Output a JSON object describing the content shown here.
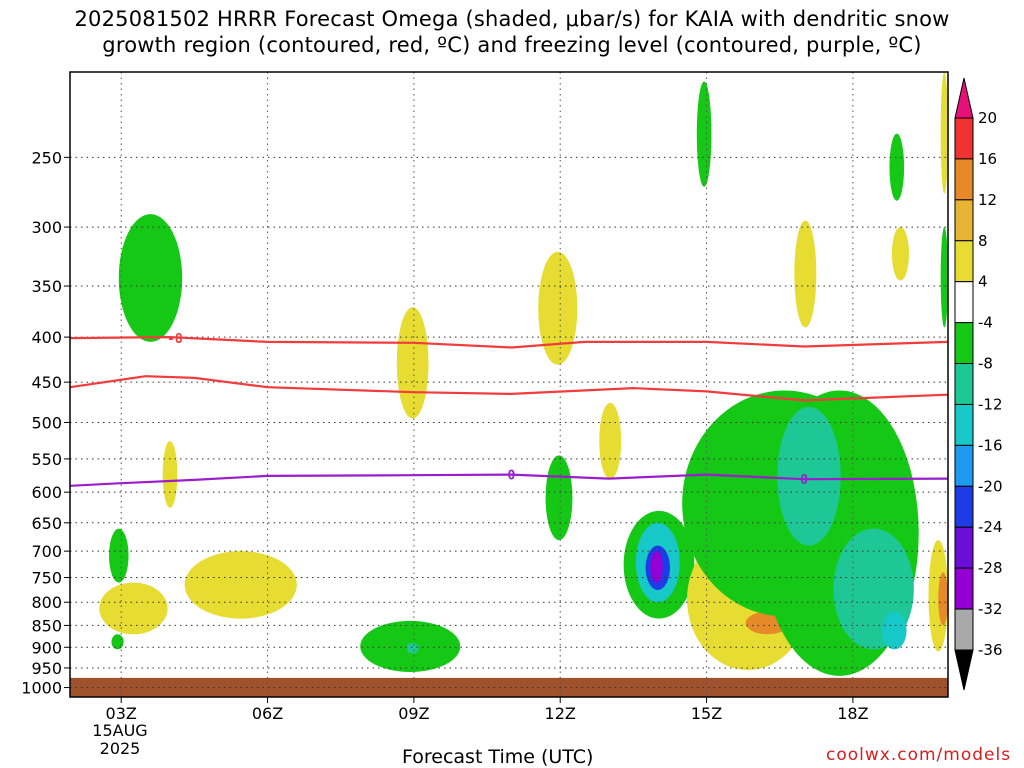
{
  "title": {
    "line1": "2025081502 HRRR Forecast Omega (shaded, μbar/s) for KAIA with dendritic snow",
    "line2": "growth region (contoured, red, ºC) and freezing level (contoured, purple, ºC)"
  },
  "x_axis": {
    "label": "Forecast Time (UTC)",
    "date_line1": "15AUG",
    "date_line2": "2025"
  },
  "credit": "coolwx.com/models",
  "chart_data": {
    "type": "heatmap",
    "title": "2025081502 HRRR Forecast Omega (shaded, μbar/s) for KAIA with dendritic snow growth region (contoured, red, ºC) and freezing level (contoured, purple, ºC)",
    "xlabel": "Forecast Time (UTC)",
    "ylabel": "",
    "x_ticks": [
      "03Z",
      "06Z",
      "09Z",
      "12Z",
      "15Z",
      "18Z"
    ],
    "x_range_hours_utc": [
      1.95,
      19.95
    ],
    "y_ticks_hpa": [
      250,
      300,
      350,
      400,
      450,
      500,
      550,
      600,
      650,
      700,
      750,
      800,
      850,
      900,
      950,
      1000
    ],
    "y_range_hpa": [
      200,
      1025
    ],
    "y_scale": "pressure (inverted)",
    "ground_below_hpa": 975,
    "ground_color": "#a0522d",
    "grid": "dotted",
    "colorbar": {
      "levels": [
        -36,
        -32,
        -28,
        -24,
        -20,
        -16,
        -12,
        -8,
        -4,
        4,
        8,
        12,
        16,
        20
      ],
      "colors": [
        "#000000",
        "#a9a9a9",
        "#9400d3",
        "#6a0fd8",
        "#1e3ce6",
        "#1e9bf0",
        "#16c8c8",
        "#1ec896",
        "#16c816",
        "#ffffff",
        "#e6dc32",
        "#e6b432",
        "#e68a28",
        "#f03232",
        "#e6107a"
      ]
    },
    "series": [
      {
        "name": "-8",
        "color": "#f03c3c",
        "points": [
          [
            1.95,
            401
          ],
          [
            4,
            400
          ],
          [
            6,
            405
          ],
          [
            9,
            406
          ],
          [
            11,
            411
          ],
          [
            12.5,
            405
          ],
          [
            15,
            405
          ],
          [
            17,
            410
          ],
          [
            19.95,
            405
          ]
        ]
      },
      {
        "name": "",
        "color": "#f03c3c",
        "points": [
          [
            1.95,
            456
          ],
          [
            3.5,
            443
          ],
          [
            4.5,
            445
          ],
          [
            6,
            456
          ],
          [
            9,
            462
          ],
          [
            11,
            464
          ],
          [
            13.5,
            457
          ],
          [
            15,
            461
          ],
          [
            17,
            472
          ],
          [
            19.95,
            465
          ]
        ]
      },
      {
        "name": "0",
        "color": "#9a1ecc",
        "points": [
          [
            1.95,
            590
          ],
          [
            3,
            586
          ],
          [
            4.5,
            581
          ],
          [
            6,
            575
          ],
          [
            9,
            574
          ],
          [
            11,
            573
          ],
          [
            13,
            579
          ],
          [
            15,
            573
          ],
          [
            17,
            580
          ],
          [
            19.95,
            579
          ]
        ]
      }
    ],
    "shaded_regions": [
      {
        "x": [
          2.95,
          4.25
        ],
        "p": [
          290,
          405
        ],
        "value": -6
      },
      {
        "x": [
          2.75,
          3.15
        ],
        "p": [
          660,
          760
        ],
        "value": -6
      },
      {
        "x": [
          2.8,
          3.05
        ],
        "p": [
          870,
          905
        ],
        "value": -6
      },
      {
        "x": [
          3.85,
          4.15
        ],
        "p": [
          525,
          625
        ],
        "value": 6
      },
      {
        "x": [
          2.55,
          3.95
        ],
        "p": [
          760,
          870
        ],
        "value": 6
      },
      {
        "x": [
          4.3,
          6.6
        ],
        "p": [
          700,
          835
        ],
        "value": 6
      },
      {
        "x": [
          7.9,
          9.95
        ],
        "p": [
          840,
          960
        ],
        "value": -6
      },
      {
        "x": [
          8.85,
          9.1
        ],
        "p": [
          890,
          915
        ],
        "value": -10
      },
      {
        "x": [
          8.65,
          9.3
        ],
        "p": [
          370,
          495
        ],
        "value": 6
      },
      {
        "x": [
          11.55,
          12.35
        ],
        "p": [
          320,
          430
        ],
        "value": 6
      },
      {
        "x": [
          11.7,
          12.25
        ],
        "p": [
          545,
          680
        ],
        "value": -6
      },
      {
        "x": [
          12.8,
          13.25
        ],
        "p": [
          475,
          580
        ],
        "value": 6
      },
      {
        "x": [
          13.3,
          14.75
        ],
        "p": [
          630,
          835
        ],
        "value": -6
      },
      {
        "x": [
          13.55,
          14.45
        ],
        "p": [
          650,
          800
        ],
        "value": -14
      },
      {
        "x": [
          13.75,
          14.25
        ],
        "p": [
          690,
          775
        ],
        "value": -22
      },
      {
        "x": [
          13.85,
          14.1
        ],
        "p": [
          700,
          760
        ],
        "value": -30
      },
      {
        "x": [
          14.6,
          17.1
        ],
        "p": [
          660,
          955
        ],
        "value": 6
      },
      {
        "x": [
          15.8,
          16.7
        ],
        "p": [
          820,
          870
        ],
        "value": 12
      },
      {
        "x": [
          14.5,
          18.7
        ],
        "p": [
          460,
          830
        ],
        "value": -6
      },
      {
        "x": [
          16.1,
          19.35
        ],
        "p": [
          460,
          970
        ],
        "value": -6
      },
      {
        "x": [
          16.45,
          17.75
        ],
        "p": [
          480,
          690
        ],
        "value": -10
      },
      {
        "x": [
          17.6,
          19.25
        ],
        "p": [
          660,
          905
        ],
        "value": -10
      },
      {
        "x": [
          18.6,
          19.1
        ],
        "p": [
          820,
          905
        ],
        "value": -14
      },
      {
        "x": [
          14.8,
          15.1
        ],
        "p": [
          205,
          270
        ],
        "value": -6
      },
      {
        "x": [
          18.75,
          19.05
        ],
        "p": [
          235,
          280
        ],
        "value": -6
      },
      {
        "x": [
          18.8,
          19.15
        ],
        "p": [
          300,
          345
        ],
        "value": 6
      },
      {
        "x": [
          16.8,
          17.25
        ],
        "p": [
          295,
          390
        ],
        "value": 6
      },
      {
        "x": [
          19.8,
          19.95
        ],
        "p": [
          200,
          275
        ],
        "value": 6
      },
      {
        "x": [
          19.8,
          19.95
        ],
        "p": [
          300,
          390
        ],
        "value": -6
      },
      {
        "x": [
          19.55,
          19.95
        ],
        "p": [
          680,
          910
        ],
        "value": 6
      },
      {
        "x": [
          19.75,
          19.95
        ],
        "p": [
          740,
          850
        ],
        "value": 12
      }
    ]
  }
}
